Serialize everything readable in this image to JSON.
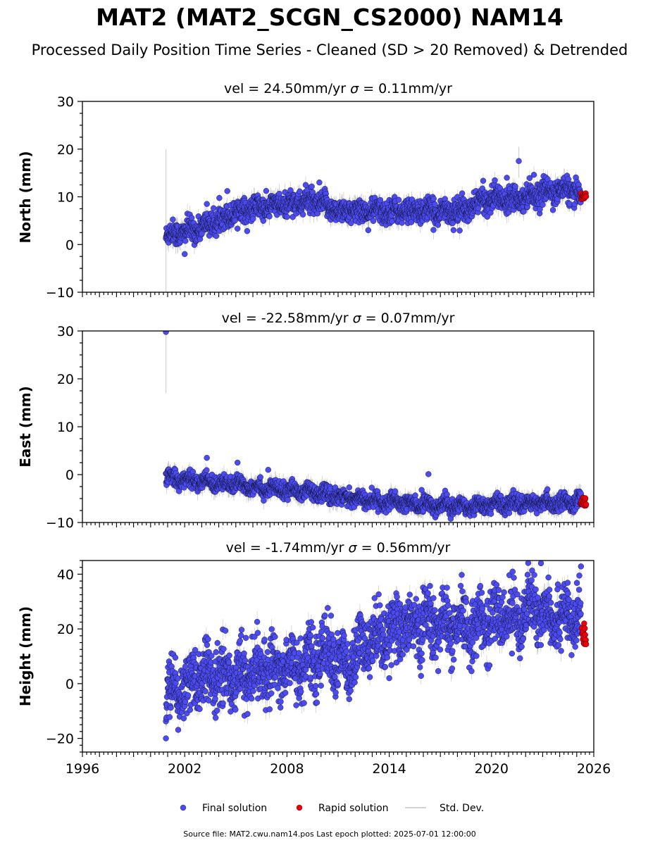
{
  "title": "MAT2 (MAT2_SCGN_CS2000) NAM14",
  "subtitle": "Processed Daily Position Time Series - Cleaned (SD > 20 Removed) & Detrended",
  "footer": "Source file: MAT2.cwu.nam14.pos  Last epoch plotted: 2025-07-01 12:00:00",
  "legend": {
    "final": "Final solution",
    "rapid": "Rapid solution",
    "stddev": "Std. Dev.",
    "placement": "bottom-center"
  },
  "colors": {
    "final": "#4b4bf0",
    "rapid": "#e8000b",
    "stddev": "#d3d3d3",
    "edge": "#000000"
  },
  "chart_data": [
    {
      "type": "scatter",
      "title_prefix": "vel = 24.50mm/yr   ",
      "sigma_symbol": "σ",
      "title_suffix": " = 0.11mm/yr",
      "ylabel": "North (mm)",
      "xlim": [
        1996,
        2026
      ],
      "ylim": [
        -10,
        30
      ],
      "yticks": [
        -10,
        0,
        10,
        20,
        30
      ],
      "ytick_labels": [
        "−10",
        "0",
        "10",
        "20",
        "30"
      ],
      "xtick_labels_shown": false,
      "grid": false,
      "trend_knots": [
        [
          2000.9,
          2.0
        ],
        [
          2002.5,
          3.0
        ],
        [
          2004.0,
          5.0
        ],
        [
          2005.0,
          7.0
        ],
        [
          2007.0,
          8.0
        ],
        [
          2009.0,
          9.0
        ],
        [
          2010.0,
          8.5
        ],
        [
          2011.0,
          7.0
        ],
        [
          2014.0,
          7.0
        ],
        [
          2018.5,
          7.0
        ],
        [
          2019.5,
          9.5
        ],
        [
          2022.0,
          10.0
        ],
        [
          2023.0,
          11.0
        ],
        [
          2024.5,
          11.5
        ],
        [
          2025.5,
          10.0
        ]
      ],
      "scatter_sd": 1.2,
      "errbar_sd": 1.3,
      "outliers": [
        [
          2000.9,
          20.0,
          -10.0
        ],
        [
          2002.0,
          -2.0,
          0
        ],
        [
          2003.3,
          8.5,
          0
        ],
        [
          2004.5,
          11.2,
          0
        ],
        [
          2009.9,
          13.0,
          0
        ],
        [
          2020.9,
          14.0,
          0
        ],
        [
          2021.6,
          17.5,
          0
        ],
        [
          2021.6,
          20.5,
          14.0
        ]
      ],
      "rapid": {
        "x_range": [
          2025.25,
          2025.55
        ],
        "y_range": [
          9.5,
          10.8
        ]
      }
    },
    {
      "type": "scatter",
      "title_prefix": "vel = -22.58mm/yr   ",
      "sigma_symbol": "σ",
      "title_suffix": " = 0.07mm/yr",
      "ylabel": "East (mm)",
      "xlim": [
        1996,
        2026
      ],
      "ylim": [
        -10,
        30
      ],
      "yticks": [
        -10,
        0,
        10,
        20,
        30
      ],
      "ytick_labels": [
        "−10",
        "0",
        "10",
        "20",
        "30"
      ],
      "xtick_labels_shown": false,
      "grid": false,
      "trend_knots": [
        [
          2000.9,
          -0.5
        ],
        [
          2003.0,
          -1.5
        ],
        [
          2005.0,
          -2.0
        ],
        [
          2007.0,
          -3.0
        ],
        [
          2009.0,
          -3.5
        ],
        [
          2011.0,
          -4.5
        ],
        [
          2013.0,
          -5.5
        ],
        [
          2015.0,
          -6.0
        ],
        [
          2017.0,
          -6.5
        ],
        [
          2019.0,
          -6.5
        ],
        [
          2021.0,
          -6.0
        ],
        [
          2023.0,
          -6.0
        ],
        [
          2025.5,
          -5.5
        ]
      ],
      "scatter_sd": 0.8,
      "errbar_sd": 1.2,
      "outliers": [
        [
          2000.9,
          29.8,
          0
        ],
        [
          2000.9,
          30.0,
          17.0
        ],
        [
          2003.3,
          3.5,
          0
        ],
        [
          2005.1,
          2.5,
          0
        ],
        [
          2016.3,
          0.1,
          0
        ],
        [
          2015.9,
          -3.2,
          0
        ],
        [
          2006.9,
          1.0,
          0
        ]
      ],
      "rapid": {
        "x_range": [
          2025.25,
          2025.55
        ],
        "y_range": [
          -6.5,
          -4.8
        ]
      }
    },
    {
      "type": "scatter",
      "title_prefix": "vel = -1.74mm/yr   ",
      "sigma_symbol": "σ",
      "title_suffix": " = 0.56mm/yr",
      "ylabel": "Height (mm)",
      "xlim": [
        1996,
        2026
      ],
      "ylim": [
        -25,
        45
      ],
      "yticks": [
        -20,
        0,
        20,
        40
      ],
      "ytick_labels": [
        "−20",
        "0",
        "20",
        "40"
      ],
      "xticks": [
        1996,
        2002,
        2008,
        2014,
        2020,
        2026
      ],
      "xtick_labels": [
        "1996",
        "2002",
        "2008",
        "2014",
        "2020",
        "2026"
      ],
      "xtick_labels_shown": true,
      "grid": false,
      "trend_knots": [
        [
          2000.9,
          -5.0
        ],
        [
          2003.0,
          2.0
        ],
        [
          2006.0,
          4.0
        ],
        [
          2009.0,
          7.0
        ],
        [
          2010.5,
          12.0
        ],
        [
          2011.5,
          5.0
        ],
        [
          2012.5,
          14.0
        ],
        [
          2014.0,
          20.0
        ],
        [
          2016.0,
          22.0
        ],
        [
          2018.0,
          20.0
        ],
        [
          2020.0,
          23.0
        ],
        [
          2022.5,
          27.0
        ],
        [
          2024.0,
          25.0
        ],
        [
          2025.5,
          22.0
        ]
      ],
      "scatter_sd": 5.5,
      "errbar_sd": 2.5,
      "outliers": [
        [
          2000.9,
          -20.0,
          0
        ],
        [
          2014.0,
          2.0,
          0
        ],
        [
          2022.9,
          44.0,
          0
        ],
        [
          2021.2,
          11.0,
          0
        ],
        [
          2015.8,
          6.0,
          0
        ]
      ],
      "rapid": {
        "x_range": [
          2025.3,
          2025.55
        ],
        "y_range": [
          14.0,
          24.5
        ]
      }
    }
  ]
}
